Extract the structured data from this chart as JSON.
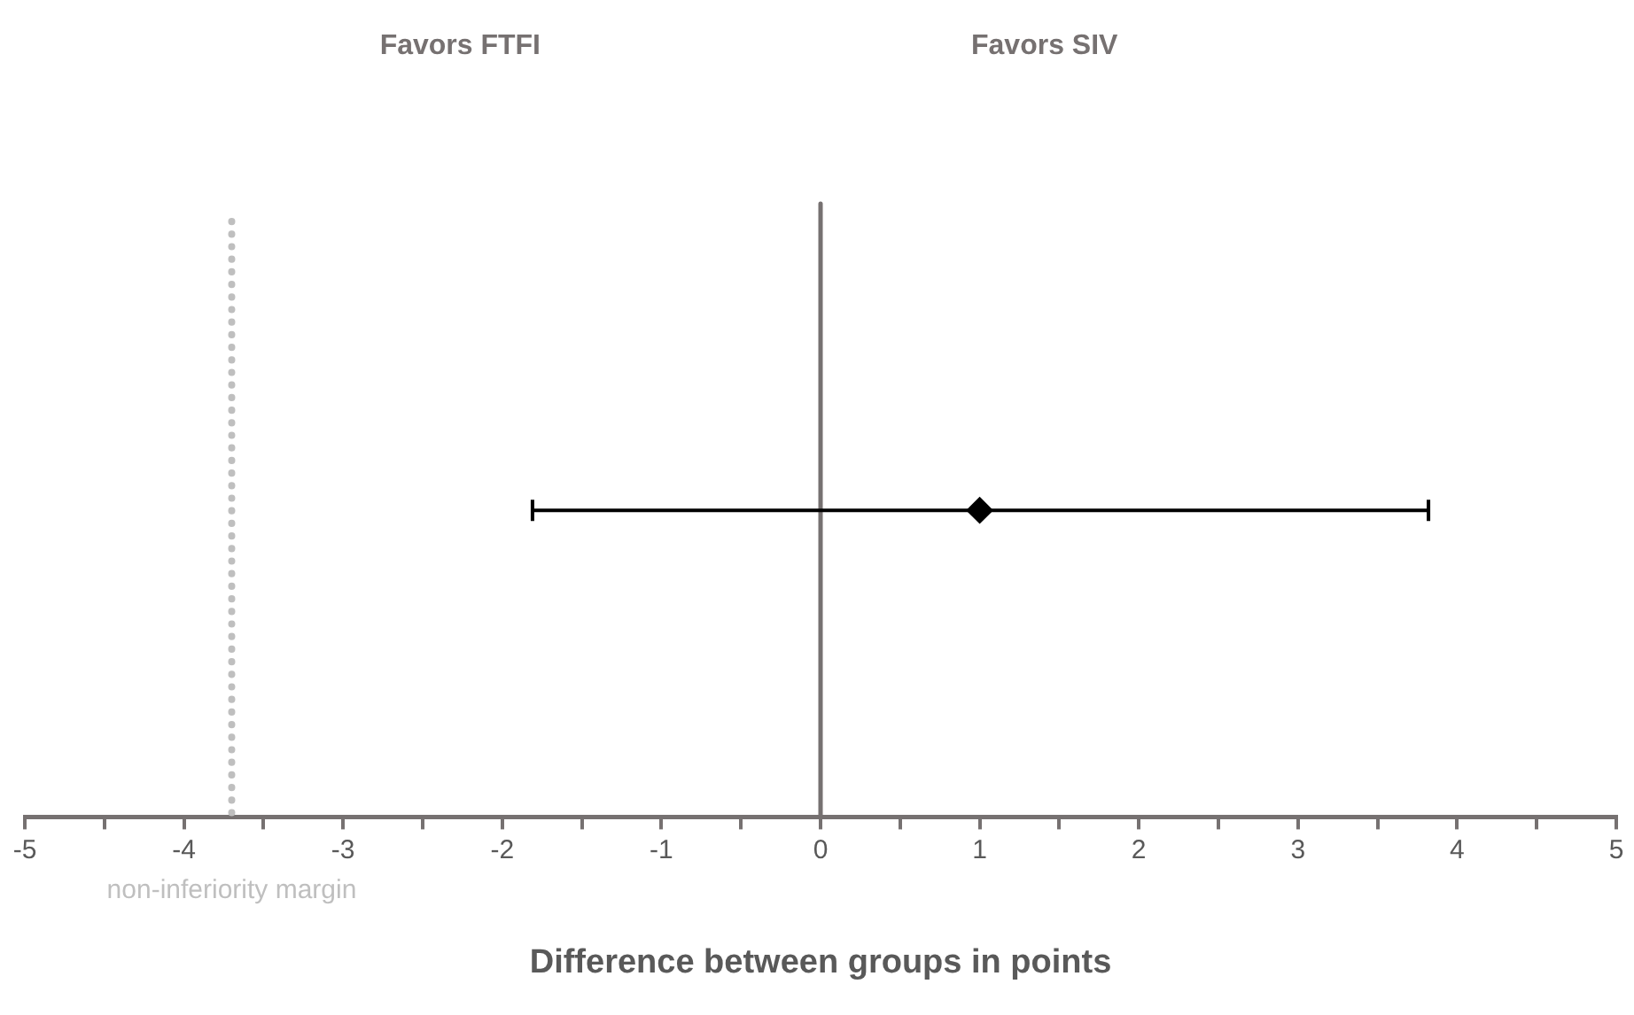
{
  "chart_data": {
    "type": "scatter",
    "xlabel": "Difference between groups in points",
    "annotations": [
      "Favors FTFI",
      "Favors SIV"
    ],
    "orientation": "horizontal",
    "categories": [
      null
    ],
    "values": [
      1
    ],
    "errors": [
      [
        -1.81,
        3.82
      ]
    ],
    "color": "#000000",
    "marker": "diamond",
    "xlim": [
      -5,
      5
    ],
    "xticks": [
      -5,
      {
        "value": -4.5,
        "label": null
      },
      -4,
      {
        "value": -3.5,
        "label": null
      },
      -3,
      {
        "value": -2.5,
        "label": null
      },
      -2,
      {
        "value": -1.5,
        "label": null
      },
      -1,
      {
        "value": -0.5,
        "label": null
      },
      0,
      {
        "value": 0.5,
        "label": null
      },
      1,
      {
        "value": 1.5,
        "label": null
      },
      2,
      {
        "value": 2.5,
        "label": null
      },
      3,
      {
        "value": 3.5,
        "label": null
      },
      4,
      {
        "value": 4.5,
        "label": null
      },
      5
    ],
    "tick_labels": "x",
    "grid": false,
    "legend": false,
    "ref_lines": [
      {
        "axis": "x",
        "value": 0,
        "label": null,
        "color": "#767171",
        "line_style": "solid"
      },
      {
        "axis": "x",
        "value": -3.7,
        "label": "non-inferiority margin",
        "color": "#bfbfbf",
        "line_style": "dotted"
      }
    ]
  }
}
